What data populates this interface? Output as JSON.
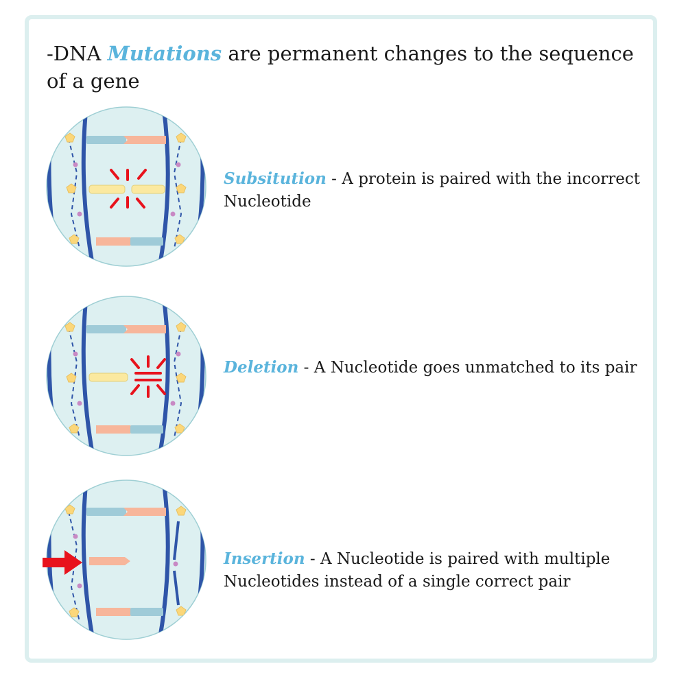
{
  "headline": {
    "prefix": "-DNA ",
    "highlight": "Mutations",
    "suffix": " are permanent changes to the sequence of a gene"
  },
  "mutations": [
    {
      "term": "Subsitution",
      "description": " - A protein is paired with the incorrect Nucleotide"
    },
    {
      "term": "Deletion",
      "description": " - A Nucleotide goes unmatched to its pair"
    },
    {
      "term": "Insertion",
      "description": " - A Nucleotide is paired with multiple Nucleotides instead of a single correct pair"
    }
  ],
  "colors": {
    "accent": "#5ab4dc",
    "frame": "#dcefef",
    "circle_fill": "#ddf0f1",
    "strand": "#2f55a8",
    "base_blue": "#9fcbd8",
    "base_salmon": "#f7b69b",
    "base_yellow": "#fbe9a0",
    "sugar": "#fbd77a",
    "phosphate": "#c889c4",
    "mutation_red": "#e8121c"
  },
  "icons": [
    "dna-substitution-icon",
    "dna-deletion-icon",
    "dna-insertion-icon",
    "red-arrow-icon"
  ]
}
